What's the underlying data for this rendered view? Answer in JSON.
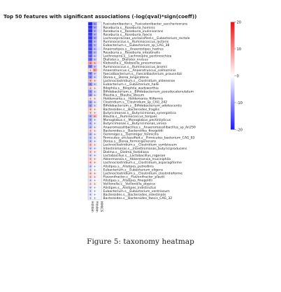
{
  "chart_data": {
    "type": "heatmap",
    "title": "Top 50 features with significant associations (-log(qval)*sign(coeff))",
    "columns": [
      "Hdsbin",
      "Hdsbin",
      "MMICS"
    ],
    "rows": [
      "Fusicatenibacter.s__Fusicatenibacter_saccharivorans",
      "Roseburia.s__Roseburia_hominis",
      "Roseburia.s__Roseburia_inulinivorans",
      "Roseburia.s__Roseburia_faecis",
      "Lachnospiraceae_unclassified.s__Eubacterium_rectale",
      "Ruminococcus.s__Ruminococcus_lactaris",
      "Eubacterium.s__Eubacterium_sp_CAG_38",
      "Anaerostipes.s__Anaerostipes_hadrus",
      "Roseburia.s__Roseburia_intestinalis",
      "Lachnospira.s__Lachnospira_pectinoschiza",
      "Dialister.s__Dialister_invisus",
      "Klebsiella.s__Klebsiella_pneumoniae",
      "Ruminococcus.s__Ruminococcus_bromii",
      "Anaerotruncus.s__Anaerotruncus_colihominis",
      "Faecalibacterium.s__Faecalibacterium_prausnitzii",
      "Dorea.s__Dorea_longicatena",
      "Lachnoclostridium.s__Clostridium_aldenense",
      "Eubacterium.s__Eubacterium_hallii",
      "Bilophila.s__Bilophila_wadsworthia",
      "Bifidobacterium.s__Bifidobacterium_pseudocatenulatum",
      "Blautia.s__Blautia_obeum",
      "Holdemania.s__Holdemania_filiformis",
      "Clostridium.s__Clostridium_sp_CAG_242",
      "Bifidobacterium.s__Bifidobacterium_adolescentis",
      "Bacteroides.s__Bacteroides_fragilis",
      "Butyricimonas.s__Butyricimonas_synergistica",
      "Blautia.s__Ruminococcus_torques",
      "Monoglobus.s__Monoglobus_pectinilyticus",
      "Butyricimonas.s__Butyricimonas_virosa",
      "Anaeromassilibacillus.s__Anaeromassilibacillus_sp_An250",
      "Bacteroides.s__Bacteroides_finegoldii",
      "Gemmiger.s__Gemmiger_formicilis",
      "Firmicutes_unclassified.s__Firmicutes_bacterium_CAG_83",
      "Dorea.s__Dorea_formicigenerans",
      "Lachnoclostridium.s__Clostridium_symbiosum",
      "Intestinimonas.s__Intestinimonas_butyriciproducens",
      "Dielma.s__Dielma_fastidiosa",
      "Lactobacillus.s__Lactobacillus_rogosae",
      "Akkermansia.s__Akkermansia_muciniphila",
      "Lachnoclostridium.s__Clostridium_asparagiforme",
      "Alistipes.s__Alistipes_putredinis",
      "Eubacterium.s__Eubacterium_eligens",
      "Lachnoclostridium.s__Clostridium_clostridioforme",
      "Flavonifractor.s__Flavonifractor_plautii",
      "Alistipes.s__Alistipes_finegoldii",
      "Veillonella.s__Veillonella_atypica",
      "Alistipes.s__Alistipes_indistinctus",
      "Eubacterium.s__Eubacterium_ventriosum",
      "Bacteroides.s__Bacteroides_intestinalis",
      "Bacteroides.s__Bacteroides_faecis_CAG_32"
    ],
    "values": [
      [
        -19,
        -9,
        -1
      ],
      [
        -18,
        -8,
        -1
      ],
      [
        -18,
        -7,
        -2
      ],
      [
        -17,
        -7,
        -1
      ],
      [
        -17,
        -8,
        -1
      ],
      [
        -16,
        -6,
        -1
      ],
      [
        -15,
        -6,
        -1
      ],
      [
        -15,
        -6,
        -2
      ],
      [
        -14,
        -6,
        -1
      ],
      [
        -13,
        -5,
        -1
      ],
      [
        -13,
        -5,
        1
      ],
      [
        9,
        5,
        2
      ],
      [
        -12,
        -5,
        -1
      ],
      [
        3,
        8,
        1
      ],
      [
        -11,
        -4,
        -1
      ],
      [
        -10,
        -4,
        -1
      ],
      [
        6,
        3,
        1
      ],
      [
        -10,
        -4,
        -1
      ],
      [
        4,
        2,
        1
      ],
      [
        -9,
        -3,
        -1
      ],
      [
        -9,
        -3,
        -1
      ],
      [
        3,
        2,
        1
      ],
      [
        -8,
        -3,
        -1
      ],
      [
        -8,
        -3,
        -1
      ],
      [
        5,
        2,
        1
      ],
      [
        4,
        2,
        1
      ],
      [
        -7,
        6,
        1
      ],
      [
        -7,
        -2,
        -1
      ],
      [
        -6,
        -2,
        -1
      ],
      [
        -6,
        -2,
        -1
      ],
      [
        4,
        2,
        1
      ],
      [
        -6,
        -2,
        -1
      ],
      [
        -5,
        -2,
        -1
      ],
      [
        -5,
        -2,
        -1
      ],
      [
        5,
        2,
        1
      ],
      [
        -4,
        -2,
        -1
      ],
      [
        4,
        2,
        1
      ],
      [
        -4,
        -2,
        -1
      ],
      [
        4,
        2,
        1
      ],
      [
        4,
        2,
        1
      ],
      [
        -4,
        -1,
        -1
      ],
      [
        -3,
        -1,
        -1
      ],
      [
        4,
        2,
        1
      ],
      [
        4,
        2,
        1
      ],
      [
        -3,
        -1,
        -1
      ],
      [
        3,
        2,
        1
      ],
      [
        -3,
        -1,
        -1
      ],
      [
        -3,
        -1,
        -1
      ],
      [
        -3,
        -1,
        -1
      ],
      [
        -2,
        -1,
        -1
      ]
    ],
    "significance_marks": [
      [
        1,
        1,
        0
      ],
      [
        1,
        1,
        0
      ],
      [
        1,
        1,
        0
      ],
      [
        1,
        1,
        0
      ],
      [
        1,
        1,
        0
      ],
      [
        1,
        1,
        0
      ],
      [
        1,
        1,
        0
      ],
      [
        1,
        1,
        0
      ],
      [
        1,
        1,
        0
      ],
      [
        1,
        1,
        0
      ],
      [
        1,
        1,
        0
      ],
      [
        1,
        1,
        0
      ],
      [
        1,
        1,
        0
      ],
      [
        1,
        1,
        0
      ],
      [
        1,
        1,
        0
      ],
      [
        1,
        1,
        0
      ],
      [
        1,
        1,
        0
      ],
      [
        1,
        1,
        0
      ],
      [
        1,
        1,
        0
      ],
      [
        1,
        1,
        0
      ],
      [
        1,
        1,
        0
      ],
      [
        1,
        1,
        0
      ],
      [
        1,
        1,
        0
      ],
      [
        1,
        1,
        0
      ],
      [
        1,
        1,
        0
      ],
      [
        1,
        1,
        0
      ],
      [
        1,
        1,
        0
      ],
      [
        1,
        1,
        0
      ],
      [
        1,
        1,
        0
      ],
      [
        1,
        1,
        0
      ],
      [
        1,
        1,
        0
      ],
      [
        1,
        1,
        0
      ],
      [
        1,
        1,
        0
      ],
      [
        1,
        1,
        0
      ],
      [
        1,
        1,
        0
      ],
      [
        1,
        1,
        0
      ],
      [
        1,
        1,
        0
      ],
      [
        1,
        1,
        0
      ],
      [
        1,
        1,
        0
      ],
      [
        1,
        1,
        0
      ],
      [
        1,
        1,
        0
      ],
      [
        1,
        1,
        0
      ],
      [
        1,
        1,
        0
      ],
      [
        1,
        1,
        0
      ],
      [
        1,
        1,
        0
      ],
      [
        1,
        1,
        0
      ],
      [
        1,
        1,
        0
      ],
      [
        1,
        1,
        0
      ],
      [
        1,
        1,
        0
      ],
      [
        1,
        1,
        0
      ]
    ],
    "mark_symbol": "+",
    "colorbar": {
      "min": -20,
      "max": 20,
      "ticks": [
        20,
        10,
        0,
        -10,
        -20
      ]
    },
    "colors": {
      "low": "#1a1aff",
      "mid": "#ffffff",
      "high": "#ee1111"
    }
  },
  "caption": "Figure 5: taxonomy heatmap"
}
